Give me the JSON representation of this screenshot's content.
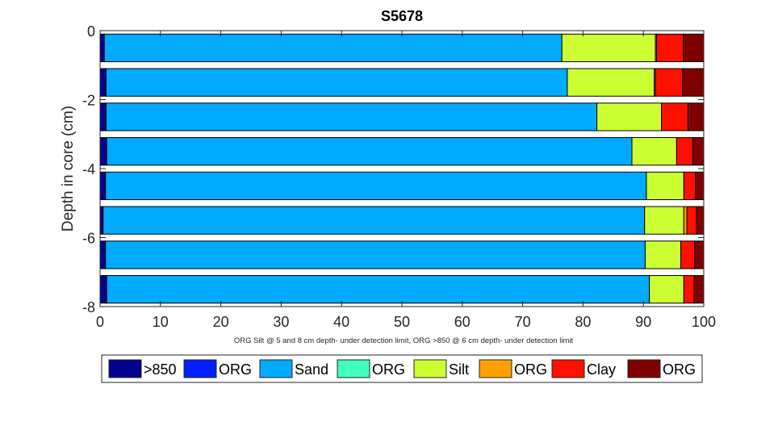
{
  "chart_data": {
    "type": "bar",
    "orientation": "horizontal",
    "stacked": true,
    "title": "S5678",
    "ylabel": "Depth in core (cm)",
    "xlabel": "",
    "note": "ORG Silt @ 5 and 8 cm depth- under detection limit, ORG >850 @ 6 cm depth- under detection limit",
    "xlim": [
      0,
      100
    ],
    "ylim": [
      -8,
      0
    ],
    "xticks": [
      "0",
      "10",
      "20",
      "30",
      "40",
      "50",
      "60",
      "70",
      "80",
      "90",
      "100"
    ],
    "yticks": [
      "0",
      "-2",
      "-4",
      "-6",
      "-8"
    ],
    "depths": [
      -0.5,
      -1.5,
      -2.5,
      -3.5,
      -4.5,
      -5.5,
      -6.5,
      -7.5
    ],
    "legend_position": "bottom",
    "grid": false,
    "series": [
      {
        "name": ">850",
        "color": "#00008F",
        "values": [
          0.7,
          1.0,
          1.0,
          1.1,
          0.9,
          0.5,
          0.9,
          1.1
        ]
      },
      {
        "name": "ORG",
        "color": "#0020FF",
        "values": [
          0,
          0,
          0,
          0,
          0,
          0,
          0,
          0
        ]
      },
      {
        "name": "Sand",
        "color": "#00AAFF",
        "values": [
          75.8,
          76.4,
          81.3,
          87.0,
          89.6,
          89.7,
          89.4,
          89.9
        ]
      },
      {
        "name": "ORG",
        "color": "#40FFBF",
        "values": [
          0,
          0,
          0,
          0,
          0,
          0,
          0,
          0
        ]
      },
      {
        "name": "Silt",
        "color": "#CCFF33",
        "values": [
          15.5,
          14.4,
          10.7,
          7.4,
          6.2,
          6.5,
          5.9,
          5.7
        ]
      },
      {
        "name": "ORG",
        "color": "#FFA000",
        "values": [
          0.2,
          0.2,
          0,
          0,
          0,
          0.5,
          0,
          0
        ]
      },
      {
        "name": "Clay",
        "color": "#FF1000",
        "values": [
          4.4,
          4.5,
          4.4,
          2.7,
          1.9,
          1.6,
          2.3,
          1.7
        ]
      },
      {
        "name": "ORG",
        "color": "#800000",
        "values": [
          3.4,
          3.5,
          2.6,
          1.8,
          1.4,
          1.2,
          1.5,
          1.6
        ]
      }
    ]
  }
}
